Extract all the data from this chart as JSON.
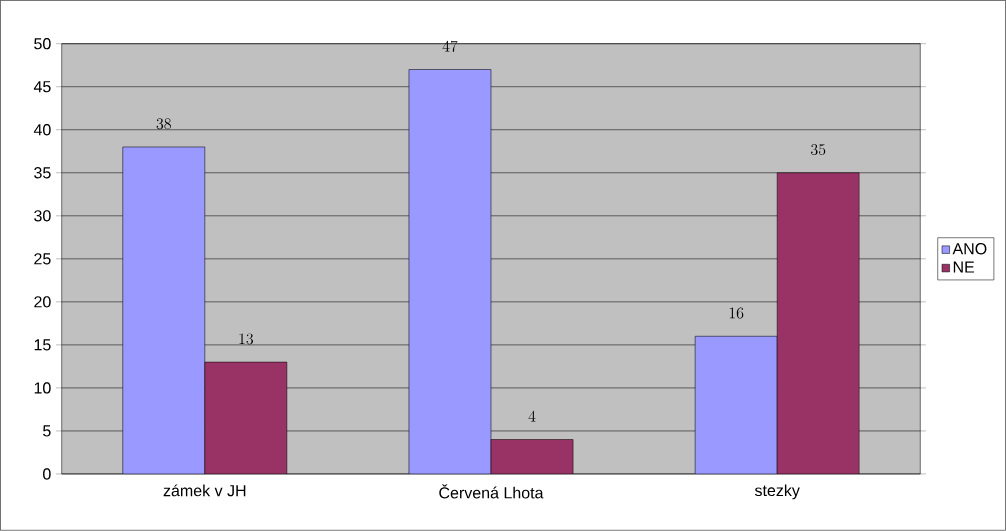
{
  "chart_data": {
    "type": "bar",
    "categories": [
      "zámek v JH",
      "Červená Lhota",
      "stezky"
    ],
    "series": [
      {
        "name": "ANO",
        "color": "#9999ff",
        "values": [
          38,
          47,
          16
        ]
      },
      {
        "name": "NE",
        "color": "#993366",
        "values": [
          13,
          4,
          35
        ]
      }
    ],
    "ylim": [
      0,
      50
    ],
    "yticks": [
      0,
      5,
      10,
      15,
      20,
      25,
      30,
      35,
      40,
      45,
      50
    ],
    "grid": "y",
    "legend": "right",
    "data_labels": true
  }
}
